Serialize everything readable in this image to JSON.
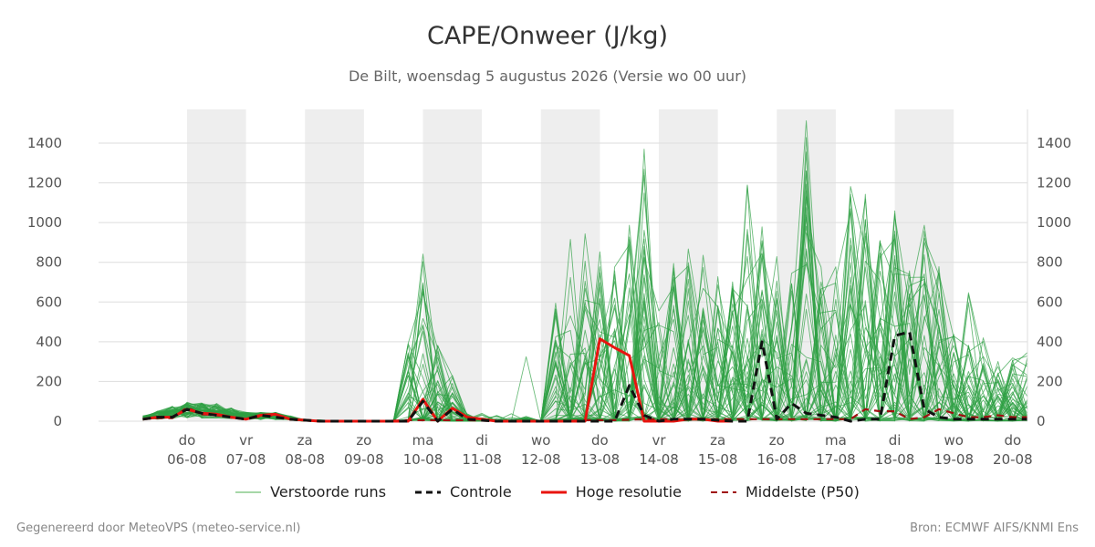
{
  "header": {
    "title": "CAPE/Onweer (J/kg)",
    "subtitle": "De Bilt, woensdag  5 augustus 2026 (Versie wo 00 uur)"
  },
  "footer": {
    "left": "Gegenereerd door MeteoVPS (meteo-service.nl)",
    "right": "Bron: ECMWF AIFS/KNMI Ens"
  },
  "colors": {
    "ensemble": "#2ea043",
    "control": "#111111",
    "hires": "#e8140f",
    "median": "#a01010",
    "weekend_band": "#eeeeee",
    "grid": "#dddddd"
  },
  "chart_data": {
    "type": "line",
    "title": "CAPE/Onweer (J/kg)",
    "subtitle": "De Bilt, woensdag  5 augustus 2026 (Versie wo 00 uur)",
    "x_unit": "days from 05-08 00:00",
    "xlim": [
      -0.75,
      15.0
    ],
    "ylim": [
      0,
      1570
    ],
    "y_ticks": [
      0,
      200,
      400,
      600,
      800,
      1000,
      1200,
      1400
    ],
    "grid": true,
    "legend_position": "bottom",
    "x_ticks": [
      {
        "x": 0.75,
        "day": "do",
        "date": "06-08"
      },
      {
        "x": 1.75,
        "day": "vr",
        "date": "07-08"
      },
      {
        "x": 2.75,
        "day": "za",
        "date": "08-08"
      },
      {
        "x": 3.75,
        "day": "zo",
        "date": "09-08"
      },
      {
        "x": 4.75,
        "day": "ma",
        "date": "10-08"
      },
      {
        "x": 5.75,
        "day": "di",
        "date": "11-08"
      },
      {
        "x": 6.75,
        "day": "wo",
        "date": "12-08"
      },
      {
        "x": 7.75,
        "day": "do",
        "date": "13-08"
      },
      {
        "x": 8.75,
        "day": "vr",
        "date": "14-08"
      },
      {
        "x": 9.75,
        "day": "za",
        "date": "15-08"
      },
      {
        "x": 10.75,
        "day": "zo",
        "date": "16-08"
      },
      {
        "x": 11.75,
        "day": "ma",
        "date": "17-08"
      },
      {
        "x": 12.75,
        "day": "di",
        "date": "18-08"
      },
      {
        "x": 13.75,
        "day": "wo",
        "date": "19-08"
      },
      {
        "x": 14.75,
        "day": "do",
        "date": "20-08"
      }
    ],
    "shaded_day_bands": [
      [
        0.75,
        1.75
      ],
      [
        2.75,
        3.75
      ],
      [
        4.75,
        5.75
      ],
      [
        6.75,
        7.75
      ],
      [
        8.75,
        9.75
      ],
      [
        10.75,
        11.75
      ],
      [
        12.75,
        13.75
      ]
    ],
    "legend": [
      {
        "key": "ensemble",
        "label": "Verstoorde runs"
      },
      {
        "key": "control",
        "label": "Controle"
      },
      {
        "key": "hires",
        "label": "Hoge resolutie"
      },
      {
        "key": "median",
        "label": "Middelste (P50)"
      }
    ],
    "ensemble_members": 50,
    "ensemble_envelope": {
      "x": [
        0,
        0.75,
        1.25,
        1.75,
        2.25,
        2.75,
        3.25,
        3.75,
        4.25,
        4.5,
        4.75,
        5.0,
        5.25,
        5.5,
        5.75,
        6.0,
        6.25,
        6.5,
        6.75,
        7.0,
        7.25,
        7.5,
        7.75,
        8.0,
        8.25,
        8.5,
        8.75,
        9.0,
        9.25,
        9.5,
        9.75,
        10.0,
        10.25,
        10.5,
        10.75,
        11.0,
        11.25,
        11.5,
        11.75,
        12.0,
        12.25,
        12.5,
        12.75,
        13.0,
        13.25,
        13.5,
        13.75,
        14.0,
        14.25,
        14.5,
        14.75,
        15.0
      ],
      "max": [
        30,
        110,
        100,
        50,
        50,
        10,
        5,
        5,
        5,
        420,
        1020,
        400,
        240,
        40,
        40,
        30,
        40,
        360,
        10,
        620,
        970,
        960,
        870,
        780,
        990,
        1480,
        630,
        800,
        930,
        970,
        770,
        720,
        1190,
        1020,
        840,
        780,
        1570,
        900,
        780,
        1200,
        1200,
        930,
        1060,
        800,
        1000,
        820,
        440,
        660,
        450,
        320,
        320,
        350
      ]
    },
    "series": [
      {
        "key": "control",
        "name": "Controle",
        "x": [
          0,
          0.25,
          0.5,
          0.75,
          1.0,
          1.25,
          1.5,
          1.75,
          2.0,
          2.25,
          2.5,
          2.75,
          3.0,
          3.5,
          4.0,
          4.5,
          4.75,
          5.0,
          5.25,
          5.5,
          6.0,
          6.5,
          7.0,
          7.5,
          7.75,
          8.0,
          8.25,
          8.5,
          8.75,
          9.0,
          9.5,
          10.0,
          10.25,
          10.5,
          10.75,
          11.0,
          11.25,
          11.5,
          11.75,
          12.0,
          12.25,
          12.5,
          12.75,
          13.0,
          13.25,
          13.5,
          13.75,
          14.0,
          14.5,
          15.0
        ],
        "values": [
          10,
          20,
          20,
          60,
          40,
          30,
          20,
          10,
          30,
          20,
          10,
          5,
          0,
          0,
          0,
          0,
          100,
          0,
          60,
          10,
          0,
          0,
          0,
          0,
          0,
          0,
          180,
          30,
          0,
          10,
          10,
          0,
          0,
          400,
          10,
          90,
          40,
          30,
          20,
          0,
          10,
          10,
          430,
          450,
          60,
          20,
          10,
          10,
          10,
          10
        ]
      },
      {
        "key": "hires",
        "name": "Hoge resolutie",
        "x": [
          0,
          0.25,
          0.5,
          0.75,
          1.0,
          1.25,
          1.5,
          1.75,
          2.0,
          2.25,
          2.5,
          2.75,
          3.0,
          3.5,
          4.0,
          4.5,
          4.75,
          5.0,
          5.25,
          5.5,
          6.0,
          6.5,
          7.0,
          7.25,
          7.5,
          7.75,
          8.0,
          8.25,
          8.5,
          8.75,
          9.0,
          9.25,
          9.5,
          9.75,
          10.0
        ],
        "values": [
          10,
          20,
          20,
          60,
          40,
          35,
          20,
          10,
          30,
          35,
          10,
          5,
          0,
          0,
          0,
          0,
          110,
          0,
          65,
          20,
          0,
          0,
          0,
          0,
          0,
          415,
          370,
          330,
          0,
          0,
          0,
          10,
          10,
          0,
          0
        ]
      },
      {
        "key": "median",
        "name": "Middelste (P50)",
        "x": [
          0,
          0.25,
          0.5,
          0.75,
          1.0,
          1.25,
          1.5,
          1.75,
          2.0,
          2.25,
          2.5,
          2.75,
          3.0,
          3.5,
          4.0,
          4.5,
          5.0,
          5.5,
          6.0,
          6.5,
          7.0,
          7.5,
          8.0,
          8.5,
          9.0,
          9.5,
          10.0,
          10.5,
          11.0,
          11.5,
          12.0,
          12.25,
          12.5,
          12.75,
          13.0,
          13.25,
          13.5,
          13.75,
          14.0,
          14.25,
          14.5,
          14.75,
          15.0
        ],
        "values": [
          10,
          15,
          15,
          70,
          35,
          30,
          20,
          10,
          25,
          30,
          10,
          5,
          0,
          0,
          0,
          5,
          5,
          5,
          0,
          0,
          0,
          5,
          5,
          10,
          10,
          10,
          10,
          10,
          10,
          10,
          10,
          60,
          50,
          50,
          10,
          20,
          60,
          40,
          20,
          20,
          30,
          20,
          20
        ]
      }
    ]
  }
}
